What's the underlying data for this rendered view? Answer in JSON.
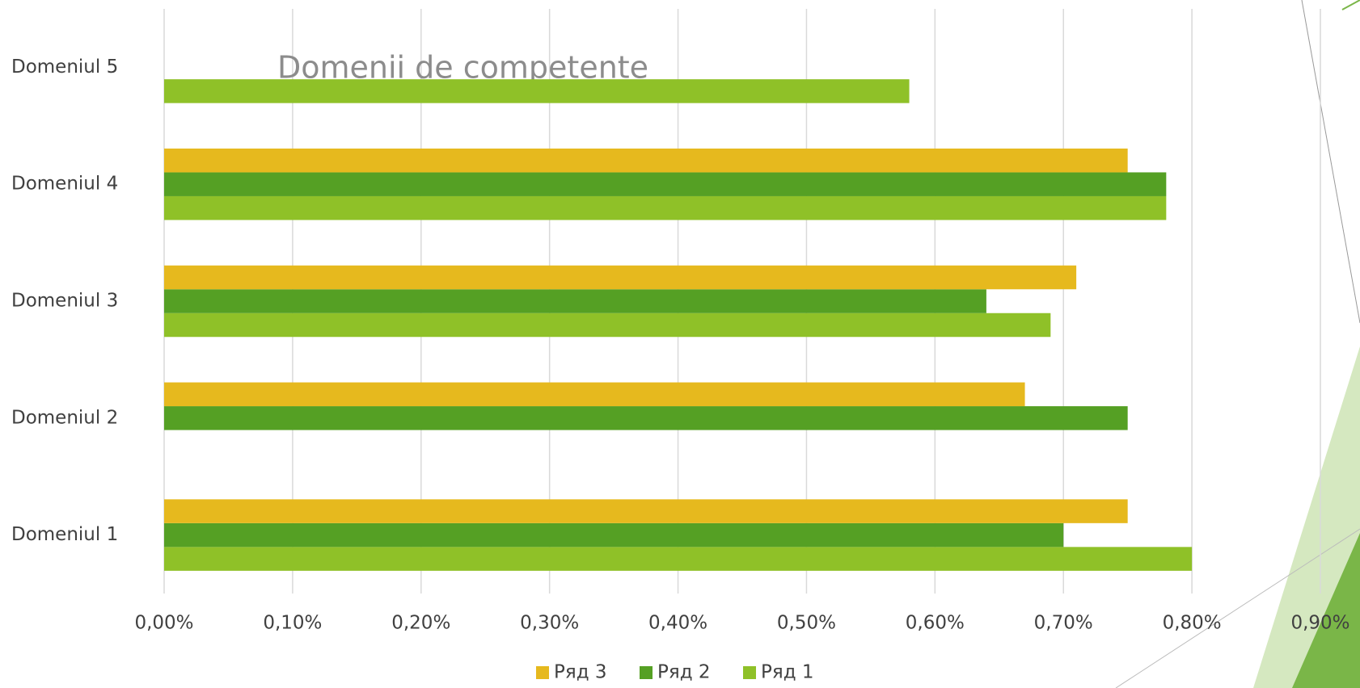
{
  "chart_data": {
    "type": "bar",
    "orientation": "horizontal",
    "title": "Domenii de competente",
    "categories": [
      "Domeniul 1",
      "Domeniul 2",
      "Domeniul 3",
      "Domeniul 4",
      "Domeniul 5"
    ],
    "series": [
      {
        "name": "Ряд 1",
        "color": "#8fc128",
        "values": [
          0.8,
          null,
          0.69,
          0.78,
          0.58
        ]
      },
      {
        "name": "Ряд 2",
        "color": "#55a024",
        "values": [
          0.7,
          0.75,
          0.64,
          0.78,
          null
        ]
      },
      {
        "name": "Ряд 3",
        "color": "#e6b91e",
        "values": [
          0.75,
          0.67,
          0.71,
          0.75,
          null
        ]
      }
    ],
    "xlim": [
      0,
      0.9
    ],
    "xticks": [
      {
        "value": 0,
        "label": "0,00%"
      },
      {
        "value": 0.1,
        "label": "0,10%"
      },
      {
        "value": 0.2,
        "label": "0,20%"
      },
      {
        "value": 0.3,
        "label": "0,30%"
      },
      {
        "value": 0.4,
        "label": "0,40%"
      },
      {
        "value": 0.5,
        "label": "0,50%"
      },
      {
        "value": 0.6,
        "label": "0,60%"
      },
      {
        "value": 0.7,
        "label": "0,70%"
      },
      {
        "value": 0.8,
        "label": "0,80%"
      },
      {
        "value": 0.9,
        "label": "0,90%"
      }
    ],
    "grid": true,
    "legend": "bottom"
  }
}
